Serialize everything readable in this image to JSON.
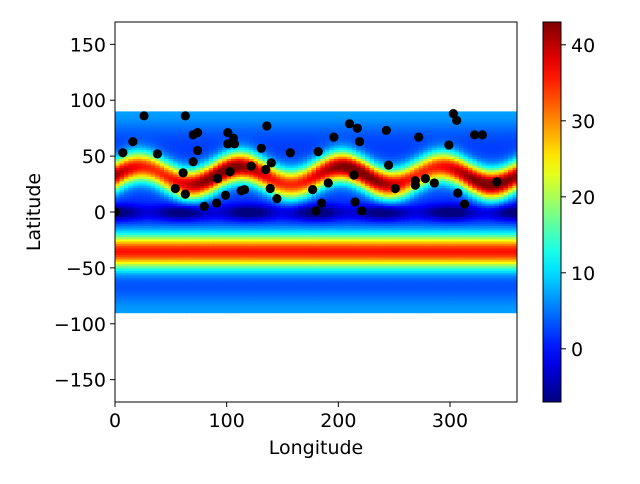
{
  "chart_data": {
    "type": "heatmap",
    "title": "",
    "xlabel": "Longitude",
    "ylabel": "Latitude",
    "xlim": [
      0,
      360
    ],
    "ylim": [
      -170,
      170
    ],
    "xticks": [
      0,
      100,
      200,
      300
    ],
    "yticks": [
      -150,
      -100,
      -50,
      0,
      50,
      100,
      150
    ],
    "heatmap": {
      "lon_range": [
        0,
        360
      ],
      "lat_range": [
        -90,
        90
      ],
      "colormap": "jet",
      "vmin": -7,
      "vmax": 43,
      "bands": {
        "south_band_center_lat": -35,
        "south_band_peak_value": 34,
        "north_wavy_band_center_lat": 33,
        "north_wavy_band_peak_value": 43,
        "equatorial_minimum_value": -4,
        "pole_edge_value": 5
      }
    },
    "colorbar": {
      "ticks": [
        0,
        10,
        20,
        30,
        40
      ],
      "vmin": -7,
      "vmax": 43
    },
    "scatter_series": {
      "name": "",
      "color": "#000000",
      "points": [
        [
          0,
          0
        ],
        [
          7,
          53
        ],
        [
          16,
          63
        ],
        [
          26,
          86
        ],
        [
          38,
          52
        ],
        [
          54,
          21
        ],
        [
          61,
          35
        ],
        [
          63,
          86
        ],
        [
          63,
          16
        ],
        [
          70,
          69
        ],
        [
          70,
          45
        ],
        [
          74,
          71
        ],
        [
          74,
          55
        ],
        [
          80,
          5
        ],
        [
          91,
          8
        ],
        [
          92,
          30
        ],
        [
          99,
          15
        ],
        [
          101,
          71
        ],
        [
          101,
          61
        ],
        [
          103,
          36
        ],
        [
          106,
          66
        ],
        [
          107,
          61
        ],
        [
          113,
          19
        ],
        [
          116,
          20
        ],
        [
          122,
          41
        ],
        [
          131,
          57
        ],
        [
          135,
          38
        ],
        [
          136,
          77
        ],
        [
          139,
          21
        ],
        [
          140,
          44
        ],
        [
          145,
          12
        ],
        [
          157,
          53
        ],
        [
          177,
          20
        ],
        [
          180,
          1
        ],
        [
          182,
          54
        ],
        [
          185,
          8
        ],
        [
          191,
          26
        ],
        [
          196,
          67
        ],
        [
          210,
          79
        ],
        [
          214,
          33
        ],
        [
          215,
          9
        ],
        [
          217,
          75
        ],
        [
          219,
          63
        ],
        [
          221,
          1
        ],
        [
          243,
          73
        ],
        [
          245,
          42
        ],
        [
          251,
          21
        ],
        [
          269,
          24
        ],
        [
          269,
          28
        ],
        [
          272,
          67
        ],
        [
          278,
          30
        ],
        [
          286,
          26
        ],
        [
          299,
          60
        ],
        [
          303,
          88
        ],
        [
          306,
          82
        ],
        [
          307,
          17
        ],
        [
          313,
          7
        ],
        [
          322,
          69
        ],
        [
          329,
          69
        ],
        [
          342,
          27
        ]
      ]
    }
  }
}
